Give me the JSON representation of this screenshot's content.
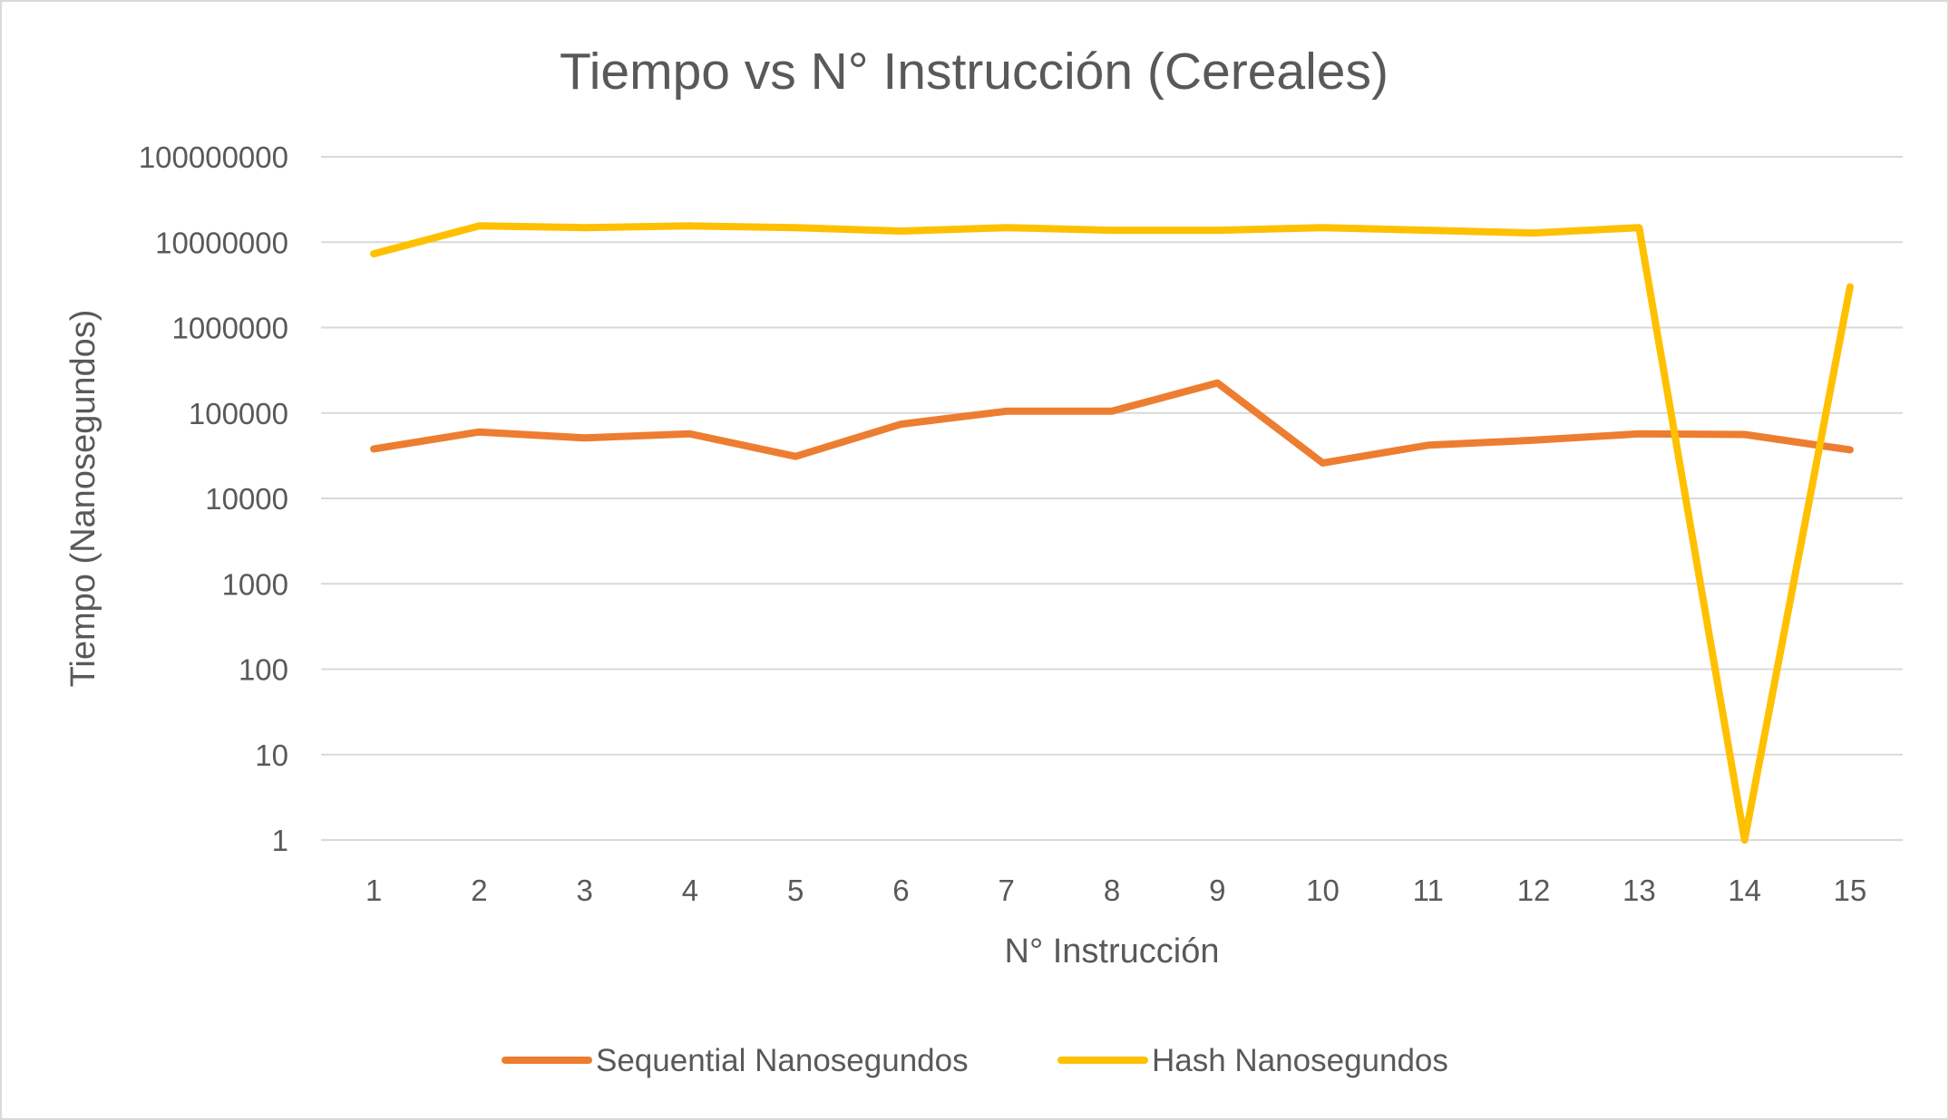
{
  "chart_data": {
    "type": "line",
    "title": "Tiempo vs N° Instrucción (Cereales)",
    "xlabel": "N° Instrucción",
    "ylabel": "Tiempo (Nanosegundos)",
    "yscale": "log",
    "ylim": [
      1,
      100000000
    ],
    "y_ticks": [
      1,
      10,
      100,
      1000,
      10000,
      100000,
      1000000,
      10000000,
      100000000
    ],
    "y_tick_labels": [
      "1",
      "10",
      "100",
      "1000",
      "10000",
      "100000",
      "1000000",
      "10000000",
      "100000000"
    ],
    "categories": [
      "1",
      "2",
      "3",
      "4",
      "5",
      "6",
      "7",
      "8",
      "9",
      "10",
      "11",
      "12",
      "13",
      "14",
      "15"
    ],
    "grid": true,
    "legend_position": "bottom",
    "series": [
      {
        "name": "Sequential Nanosegundos",
        "color": "#ED7D31",
        "values": [
          38000,
          60000,
          51000,
          57000,
          31000,
          74000,
          105000,
          105000,
          225000,
          26000,
          42000,
          48000,
          57000,
          56000,
          37000
        ]
      },
      {
        "name": "Hash Nanosegundos",
        "color": "#FFC000",
        "values": [
          7300000,
          15500000,
          14800000,
          15500000,
          14800000,
          13500000,
          14800000,
          13800000,
          13800000,
          14800000,
          13800000,
          12800000,
          14800000,
          1,
          3000000
        ]
      }
    ]
  }
}
